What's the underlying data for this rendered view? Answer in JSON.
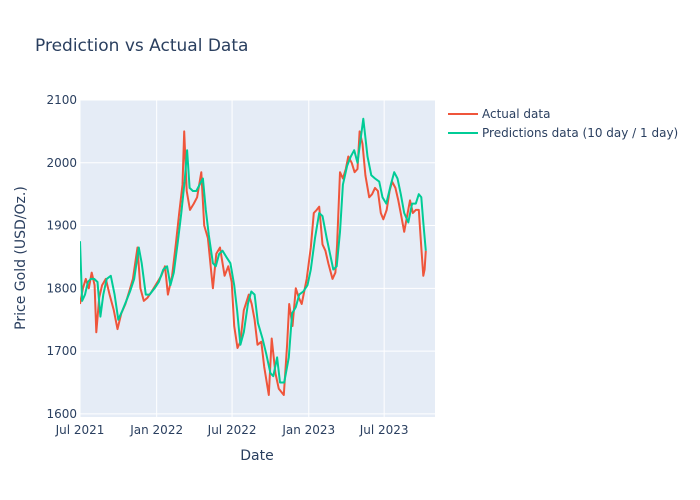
{
  "chart_data": {
    "type": "line",
    "title": "Prediction vs Actual Data",
    "xlabel": "Date",
    "ylabel": "Price Gold (USD/Oz.)",
    "x_ticks": [
      "Jul 2021",
      "Jan 2022",
      "Jul 2022",
      "Jan 2023",
      "Jul 2023"
    ],
    "x_tick_dates": [
      "2021-07-01",
      "2022-01-01",
      "2022-07-01",
      "2023-01-01",
      "2023-07-01"
    ],
    "xlim": [
      "2021-07-01",
      "2023-10-31"
    ],
    "y_ticks": [
      1600,
      1700,
      1800,
      1900,
      2000,
      2100
    ],
    "ylim": [
      1595,
      2100
    ],
    "grid": true,
    "legend_position": "top-right outside",
    "series": [
      {
        "name": "Actual data",
        "color": "#EF553B",
        "points": [
          [
            "2021-07-01",
            1775
          ],
          [
            "2021-07-08",
            1800
          ],
          [
            "2021-07-15",
            1815
          ],
          [
            "2021-07-22",
            1800
          ],
          [
            "2021-07-29",
            1825
          ],
          [
            "2021-08-05",
            1805
          ],
          [
            "2021-08-09",
            1730
          ],
          [
            "2021-08-16",
            1785
          ],
          [
            "2021-08-23",
            1805
          ],
          [
            "2021-09-01",
            1815
          ],
          [
            "2021-09-10",
            1790
          ],
          [
            "2021-09-20",
            1765
          ],
          [
            "2021-09-29",
            1735
          ],
          [
            "2021-10-08",
            1760
          ],
          [
            "2021-10-18",
            1775
          ],
          [
            "2021-10-27",
            1795
          ],
          [
            "2021-11-05",
            1815
          ],
          [
            "2021-11-16",
            1865
          ],
          [
            "2021-11-23",
            1800
          ],
          [
            "2021-12-01",
            1780
          ],
          [
            "2021-12-10",
            1785
          ],
          [
            "2021-12-20",
            1795
          ],
          [
            "2022-01-03",
            1810
          ],
          [
            "2022-01-12",
            1820
          ],
          [
            "2022-01-21",
            1835
          ],
          [
            "2022-01-28",
            1790
          ],
          [
            "2022-02-07",
            1820
          ],
          [
            "2022-02-16",
            1870
          ],
          [
            "2022-02-24",
            1920
          ],
          [
            "2022-03-04",
            1965
          ],
          [
            "2022-03-08",
            2050
          ],
          [
            "2022-03-14",
            1955
          ],
          [
            "2022-03-22",
            1925
          ],
          [
            "2022-03-31",
            1935
          ],
          [
            "2022-04-08",
            1945
          ],
          [
            "2022-04-18",
            1985
          ],
          [
            "2022-04-25",
            1900
          ],
          [
            "2022-05-04",
            1880
          ],
          [
            "2022-05-12",
            1825
          ],
          [
            "2022-05-16",
            1800
          ],
          [
            "2022-05-24",
            1855
          ],
          [
            "2022-06-02",
            1865
          ],
          [
            "2022-06-13",
            1820
          ],
          [
            "2022-06-22",
            1835
          ],
          [
            "2022-06-30",
            1810
          ],
          [
            "2022-07-06",
            1740
          ],
          [
            "2022-07-14",
            1705
          ],
          [
            "2022-07-21",
            1715
          ],
          [
            "2022-07-29",
            1765
          ],
          [
            "2022-08-10",
            1790
          ],
          [
            "2022-08-17",
            1775
          ],
          [
            "2022-08-24",
            1750
          ],
          [
            "2022-08-31",
            1710
          ],
          [
            "2022-09-09",
            1715
          ],
          [
            "2022-09-16",
            1675
          ],
          [
            "2022-09-27",
            1630
          ],
          [
            "2022-10-04",
            1720
          ],
          [
            "2022-10-13",
            1665
          ],
          [
            "2022-10-21",
            1640
          ],
          [
            "2022-11-02",
            1630
          ],
          [
            "2022-11-10",
            1710
          ],
          [
            "2022-11-15",
            1775
          ],
          [
            "2022-11-23",
            1740
          ],
          [
            "2022-12-01",
            1800
          ],
          [
            "2022-12-08",
            1785
          ],
          [
            "2022-12-15",
            1775
          ],
          [
            "2022-12-27",
            1815
          ],
          [
            "2023-01-06",
            1865
          ],
          [
            "2023-01-13",
            1920
          ],
          [
            "2023-01-20",
            1925
          ],
          [
            "2023-01-26",
            1930
          ],
          [
            "2023-02-03",
            1870
          ],
          [
            "2023-02-10",
            1860
          ],
          [
            "2023-02-17",
            1840
          ],
          [
            "2023-02-27",
            1815
          ],
          [
            "2023-03-06",
            1825
          ],
          [
            "2023-03-10",
            1870
          ],
          [
            "2023-03-17",
            1985
          ],
          [
            "2023-03-24",
            1975
          ],
          [
            "2023-03-31",
            1990
          ],
          [
            "2023-04-06",
            2010
          ],
          [
            "2023-04-14",
            2000
          ],
          [
            "2023-04-21",
            1985
          ],
          [
            "2023-04-28",
            1990
          ],
          [
            "2023-05-03",
            2050
          ],
          [
            "2023-05-10",
            2030
          ],
          [
            "2023-05-17",
            1980
          ],
          [
            "2023-05-26",
            1945
          ],
          [
            "2023-06-02",
            1950
          ],
          [
            "2023-06-09",
            1960
          ],
          [
            "2023-06-16",
            1955
          ],
          [
            "2023-06-23",
            1920
          ],
          [
            "2023-06-29",
            1910
          ],
          [
            "2023-07-07",
            1925
          ],
          [
            "2023-07-14",
            1955
          ],
          [
            "2023-07-20",
            1970
          ],
          [
            "2023-07-28",
            1960
          ],
          [
            "2023-08-04",
            1940
          ],
          [
            "2023-08-11",
            1915
          ],
          [
            "2023-08-18",
            1890
          ],
          [
            "2023-08-25",
            1915
          ],
          [
            "2023-09-01",
            1940
          ],
          [
            "2023-09-08",
            1920
          ],
          [
            "2023-09-15",
            1925
          ],
          [
            "2023-09-22",
            1925
          ],
          [
            "2023-09-28",
            1865
          ],
          [
            "2023-10-03",
            1820
          ],
          [
            "2023-10-06",
            1830
          ],
          [
            "2023-10-09",
            1860
          ]
        ]
      },
      {
        "name": "Predictions data (10 day / 1 day)",
        "color": "#00CC96",
        "points": [
          [
            "2021-07-01",
            1875
          ],
          [
            "2021-07-06",
            1780
          ],
          [
            "2021-07-13",
            1790
          ],
          [
            "2021-07-20",
            1810
          ],
          [
            "2021-07-27",
            1815
          ],
          [
            "2021-08-04",
            1815
          ],
          [
            "2021-08-12",
            1810
          ],
          [
            "2021-08-19",
            1755
          ],
          [
            "2021-08-26",
            1790
          ],
          [
            "2021-09-03",
            1815
          ],
          [
            "2021-09-13",
            1820
          ],
          [
            "2021-09-22",
            1790
          ],
          [
            "2021-10-01",
            1750
          ],
          [
            "2021-10-11",
            1765
          ],
          [
            "2021-10-20",
            1780
          ],
          [
            "2021-10-29",
            1795
          ],
          [
            "2021-11-08",
            1815
          ],
          [
            "2021-11-19",
            1865
          ],
          [
            "2021-11-26",
            1840
          ],
          [
            "2021-12-06",
            1790
          ],
          [
            "2021-12-15",
            1790
          ],
          [
            "2021-12-27",
            1800
          ],
          [
            "2022-01-06",
            1810
          ],
          [
            "2022-01-17",
            1830
          ],
          [
            "2022-01-26",
            1835
          ],
          [
            "2022-02-03",
            1805
          ],
          [
            "2022-02-11",
            1825
          ],
          [
            "2022-02-21",
            1875
          ],
          [
            "2022-03-01",
            1920
          ],
          [
            "2022-03-09",
            1970
          ],
          [
            "2022-03-15",
            2020
          ],
          [
            "2022-03-21",
            1960
          ],
          [
            "2022-03-29",
            1955
          ],
          [
            "2022-04-06",
            1955
          ],
          [
            "2022-04-14",
            1965
          ],
          [
            "2022-04-22",
            1975
          ],
          [
            "2022-04-29",
            1925
          ],
          [
            "2022-05-06",
            1885
          ],
          [
            "2022-05-16",
            1840
          ],
          [
            "2022-05-23",
            1835
          ],
          [
            "2022-05-31",
            1855
          ],
          [
            "2022-06-08",
            1860
          ],
          [
            "2022-06-17",
            1850
          ],
          [
            "2022-06-27",
            1840
          ],
          [
            "2022-07-06",
            1805
          ],
          [
            "2022-07-13",
            1765
          ],
          [
            "2022-07-21",
            1710
          ],
          [
            "2022-07-29",
            1730
          ],
          [
            "2022-08-08",
            1775
          ],
          [
            "2022-08-16",
            1795
          ],
          [
            "2022-08-24",
            1790
          ],
          [
            "2022-09-01",
            1745
          ],
          [
            "2022-09-12",
            1720
          ],
          [
            "2022-09-21",
            1695
          ],
          [
            "2022-10-01",
            1665
          ],
          [
            "2022-10-08",
            1660
          ],
          [
            "2022-10-17",
            1690
          ],
          [
            "2022-10-24",
            1650
          ],
          [
            "2022-11-03",
            1650
          ],
          [
            "2022-11-14",
            1690
          ],
          [
            "2022-11-22",
            1760
          ],
          [
            "2022-12-01",
            1770
          ],
          [
            "2022-12-09",
            1790
          ],
          [
            "2022-12-19",
            1795
          ],
          [
            "2022-12-29",
            1805
          ],
          [
            "2023-01-06",
            1830
          ],
          [
            "2023-01-16",
            1880
          ],
          [
            "2023-01-26",
            1920
          ],
          [
            "2023-02-03",
            1915
          ],
          [
            "2023-02-13",
            1880
          ],
          [
            "2023-02-21",
            1855
          ],
          [
            "2023-03-01",
            1830
          ],
          [
            "2023-03-09",
            1835
          ],
          [
            "2023-03-17",
            1890
          ],
          [
            "2023-03-24",
            1965
          ],
          [
            "2023-04-03",
            1995
          ],
          [
            "2023-04-12",
            2010
          ],
          [
            "2023-04-20",
            2020
          ],
          [
            "2023-04-28",
            2000
          ],
          [
            "2023-05-06",
            2040
          ],
          [
            "2023-05-12",
            2070
          ],
          [
            "2023-05-22",
            2010
          ],
          [
            "2023-05-31",
            1980
          ],
          [
            "2023-06-09",
            1975
          ],
          [
            "2023-06-19",
            1970
          ],
          [
            "2023-06-27",
            1945
          ],
          [
            "2023-07-06",
            1935
          ],
          [
            "2023-07-17",
            1965
          ],
          [
            "2023-07-25",
            1985
          ],
          [
            "2023-08-02",
            1975
          ],
          [
            "2023-08-10",
            1950
          ],
          [
            "2023-08-18",
            1920
          ],
          [
            "2023-08-28",
            1905
          ],
          [
            "2023-09-06",
            1935
          ],
          [
            "2023-09-15",
            1935
          ],
          [
            "2023-09-22",
            1950
          ],
          [
            "2023-09-28",
            1945
          ],
          [
            "2023-10-03",
            1905
          ],
          [
            "2023-10-09",
            1860
          ]
        ]
      }
    ]
  }
}
